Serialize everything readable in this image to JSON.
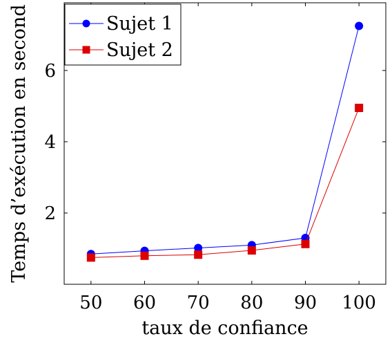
{
  "chart_data": {
    "type": "line",
    "x": [
      50,
      60,
      70,
      80,
      90,
      100
    ],
    "series": [
      {
        "name": "Sujet 1",
        "values": [
          0.85,
          0.94,
          1.02,
          1.1,
          1.3,
          7.25
        ],
        "color": "#0000ff",
        "marker": "circle"
      },
      {
        "name": "Sujet 2",
        "values": [
          0.75,
          0.8,
          0.83,
          0.95,
          1.13,
          4.95
        ],
        "color": "#dd0000",
        "marker": "square"
      }
    ],
    "xlabel": "taux de confiance",
    "ylabel": "Temps d’exécution en second",
    "xlim": [
      45,
      105
    ],
    "ylim": [
      0,
      7.9
    ],
    "xticks": [
      50,
      60,
      70,
      80,
      90,
      100
    ],
    "yticks": [
      2,
      4,
      6
    ],
    "legend_position": "top-left",
    "grid": false
  }
}
